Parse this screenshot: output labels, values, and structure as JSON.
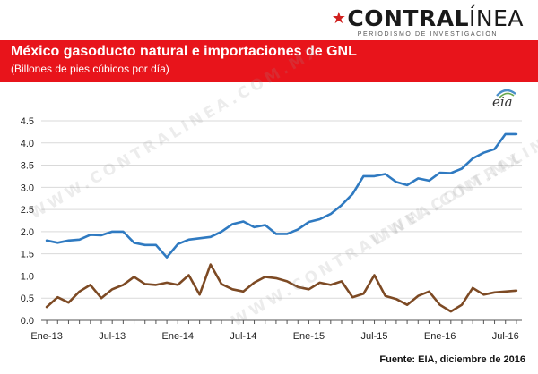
{
  "logo": {
    "bold": "CONTRAL",
    "light": "ÍNEA",
    "tagline": "PERIODISMO DE INVESTIGACIÓN"
  },
  "header": {
    "title": "México gasoducto natural e importaciones de GNL",
    "subtitle": "(Billones de pies cúbicos por día)",
    "bar_color": "#e8141b"
  },
  "eia_logo": "eia",
  "watermark": "WWW.CONTRALINEA.COM.MX",
  "source": "Fuente: EIA, diciembre de 2016",
  "chart_data": {
    "type": "line",
    "x_tick_labels": [
      "Ene-13",
      "Jul-13",
      "Ene-14",
      "Jul-14",
      "Ene-15",
      "Jul-15",
      "Ene-16",
      "Jul-16"
    ],
    "x": [
      "2013-01",
      "2013-02",
      "2013-03",
      "2013-04",
      "2013-05",
      "2013-06",
      "2013-07",
      "2013-08",
      "2013-09",
      "2013-10",
      "2013-11",
      "2013-12",
      "2014-01",
      "2014-02",
      "2014-03",
      "2014-04",
      "2014-05",
      "2014-06",
      "2014-07",
      "2014-08",
      "2014-09",
      "2014-10",
      "2014-11",
      "2014-12",
      "2015-01",
      "2015-02",
      "2015-03",
      "2015-04",
      "2015-05",
      "2015-06",
      "2015-07",
      "2015-08",
      "2015-09",
      "2015-10",
      "2015-11",
      "2015-12",
      "2016-01",
      "2016-02",
      "2016-03",
      "2016-04",
      "2016-05",
      "2016-06",
      "2016-07",
      "2016-08"
    ],
    "ylim": [
      0,
      4.5
    ],
    "y_ticks": [
      "0.0",
      "0.5",
      "1.0",
      "1.5",
      "2.0",
      "2.5",
      "3.0",
      "3.5",
      "4.0",
      "4.5"
    ],
    "grid": true,
    "series": [
      {
        "color": "#2f7ac1",
        "values": [
          1.8,
          1.75,
          1.8,
          1.82,
          1.93,
          1.92,
          2.0,
          2.0,
          1.75,
          1.7,
          1.7,
          1.42,
          1.72,
          1.82,
          1.85,
          1.88,
          2.0,
          2.17,
          2.23,
          2.1,
          2.15,
          1.95,
          1.95,
          2.05,
          2.22,
          2.28,
          2.4,
          2.6,
          2.85,
          3.25,
          3.25,
          3.3,
          3.12,
          3.05,
          3.2,
          3.15,
          3.33,
          3.32,
          3.42,
          3.65,
          3.78,
          3.86,
          4.2,
          4.2
        ]
      },
      {
        "color": "#7d4a24",
        "values": [
          0.3,
          0.52,
          0.4,
          0.65,
          0.8,
          0.5,
          0.7,
          0.8,
          0.98,
          0.82,
          0.8,
          0.85,
          0.8,
          1.02,
          0.58,
          1.26,
          0.82,
          0.7,
          0.65,
          0.85,
          0.98,
          0.95,
          0.88,
          0.75,
          0.7,
          0.85,
          0.8,
          0.88,
          0.52,
          0.6,
          1.02,
          0.55,
          0.48,
          0.35,
          0.55,
          0.65,
          0.35,
          0.2,
          0.35,
          0.73,
          0.58,
          0.63,
          0.65,
          0.67
        ]
      }
    ]
  }
}
